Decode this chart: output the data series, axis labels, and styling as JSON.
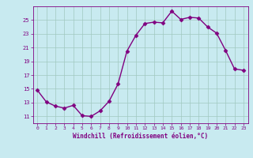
{
  "x": [
    0,
    1,
    2,
    3,
    4,
    5,
    6,
    7,
    8,
    9,
    10,
    11,
    12,
    13,
    14,
    15,
    16,
    17,
    18,
    19,
    20,
    21,
    22,
    23
  ],
  "y": [
    14.8,
    13.1,
    12.5,
    12.2,
    12.6,
    11.1,
    11.0,
    11.8,
    13.2,
    15.7,
    20.5,
    22.8,
    24.5,
    24.7,
    24.6,
    26.3,
    25.1,
    25.4,
    25.3,
    24.0,
    23.1,
    20.6,
    17.9,
    17.7
  ],
  "xlim": [
    -0.5,
    23.5
  ],
  "ylim": [
    10.0,
    27.0
  ],
  "yticks": [
    11,
    13,
    15,
    17,
    19,
    21,
    23,
    25
  ],
  "xticks": [
    0,
    1,
    2,
    3,
    4,
    5,
    6,
    7,
    8,
    9,
    10,
    11,
    12,
    13,
    14,
    15,
    16,
    17,
    18,
    19,
    20,
    21,
    22,
    23
  ],
  "xlabel": "Windchill (Refroidissement éolien,°C)",
  "line_color": "#800080",
  "marker_color": "#800080",
  "bg_color": "#c8eaf0",
  "grid_color": "#a0c8c0",
  "axis_color": "#800080",
  "tick_color": "#800080",
  "label_color": "#800080",
  "title": ""
}
